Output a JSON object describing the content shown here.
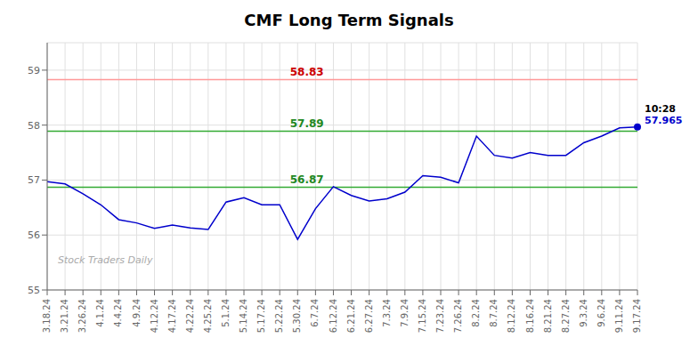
{
  "chart_data": {
    "type": "line",
    "title": "CMF Long Term Signals",
    "categories": [
      "3.18.24",
      "3.21.24",
      "3.26.24",
      "4.1.24",
      "4.4.24",
      "4.9.24",
      "4.12.24",
      "4.17.24",
      "4.22.24",
      "4.25.24",
      "5.1.24",
      "5.14.24",
      "5.17.24",
      "5.22.24",
      "5.30.24",
      "6.7.24",
      "6.12.24",
      "6.21.24",
      "6.27.24",
      "7.3.24",
      "7.9.24",
      "7.15.24",
      "7.23.24",
      "7.26.24",
      "8.2.24",
      "8.7.24",
      "8.12.24",
      "8.16.24",
      "8.21.24",
      "8.27.24",
      "9.3.24",
      "9.6.24",
      "9.11.24",
      "9.17.24"
    ],
    "values": [
      56.97,
      56.93,
      56.75,
      56.55,
      56.28,
      56.22,
      56.12,
      56.18,
      56.13,
      56.1,
      56.6,
      56.68,
      56.55,
      56.55,
      55.92,
      56.48,
      56.88,
      56.72,
      56.62,
      56.66,
      56.78,
      57.08,
      57.05,
      56.95,
      57.8,
      57.45,
      57.4,
      57.5,
      57.45,
      57.45,
      57.68,
      57.8,
      57.95,
      57.965
    ],
    "color": "#0000cc",
    "ylim": [
      55.0,
      59.5
    ],
    "yticks": [
      55,
      56,
      57,
      58,
      59
    ],
    "grid": true,
    "hlines": [
      {
        "value": 58.83,
        "color": "#ff9999",
        "label_color": "#cc0000"
      },
      {
        "value": 57.89,
        "color": "#33aa33",
        "label_color": "#228822"
      },
      {
        "value": 56.87,
        "color": "#33aa33",
        "label_color": "#228822"
      }
    ],
    "annotations": [
      {
        "text": "10:28",
        "color": "#000000"
      },
      {
        "text": "57.965",
        "color": "#0000cc"
      }
    ],
    "watermark": "Stock Traders Daily"
  }
}
